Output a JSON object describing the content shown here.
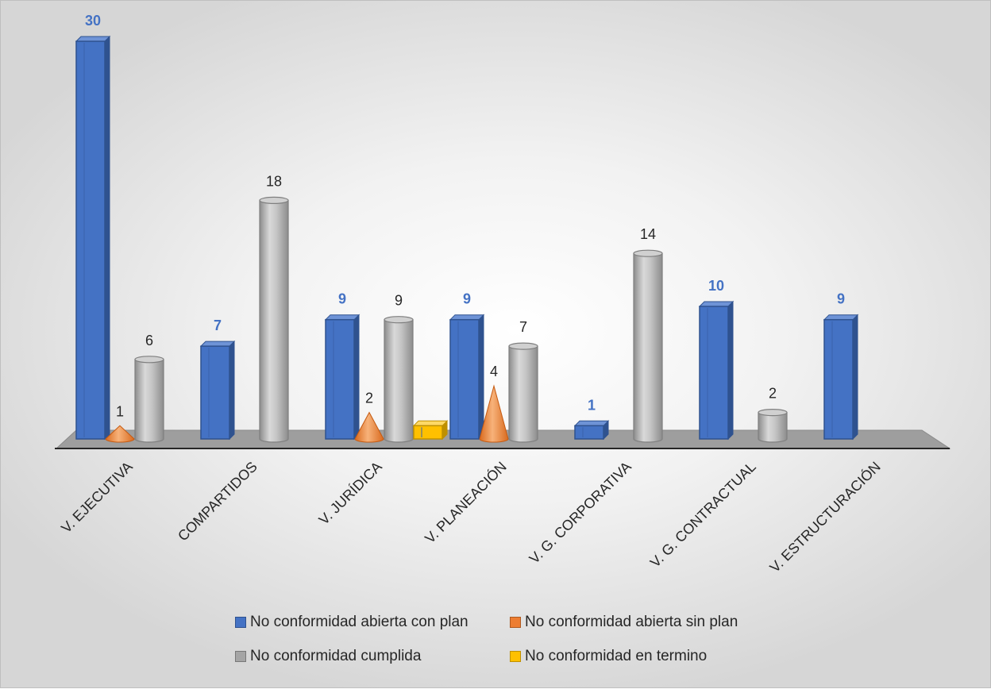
{
  "chart_data": {
    "type": "bar",
    "categories": [
      "V. EJECUTIVA",
      "COMPARTIDOS",
      "V. JURÍDICA",
      "V. PLANEACIÓN",
      "V. G. CORPORATIVA",
      "V. G. CONTRACTUAL",
      "V. ESTRUCTURACIÓN"
    ],
    "series": [
      {
        "name": "No conformidad abierta con plan",
        "shape": "box",
        "color": "#4472C4",
        "values": [
          30,
          7,
          9,
          9,
          1,
          10,
          9
        ]
      },
      {
        "name": "No conformidad abierta sin plan",
        "shape": "cone",
        "color": "#ED7D31",
        "values": [
          1,
          null,
          2,
          4,
          null,
          null,
          null
        ]
      },
      {
        "name": "No conformidad cumplida",
        "shape": "cylinder",
        "color": "#A5A5A5",
        "values": [
          6,
          18,
          9,
          7,
          14,
          2,
          null
        ]
      },
      {
        "name": "No conformidad en termino",
        "shape": "box",
        "color": "#FFC000",
        "values": [
          null,
          null,
          1,
          null,
          null,
          null,
          null
        ]
      }
    ],
    "data_labels": {
      "No conformidad abierta con plan": [
        "30",
        "7",
        "9",
        "9",
        "1",
        "10",
        "9"
      ],
      "No conformidad abierta sin plan": [
        "1",
        "",
        "2",
        "4",
        "",
        "",
        ""
      ],
      "No conformidad cumplida": [
        "6",
        "18",
        "9",
        "7",
        "14",
        "2",
        ""
      ],
      "No conformidad en termino": [
        "",
        "",
        "",
        "",
        "",
        "",
        ""
      ]
    },
    "title": "",
    "xlabel": "",
    "ylabel": "",
    "ylim": [
      0,
      30
    ],
    "grid": false,
    "legend_position": "bottom",
    "style": "3d"
  }
}
